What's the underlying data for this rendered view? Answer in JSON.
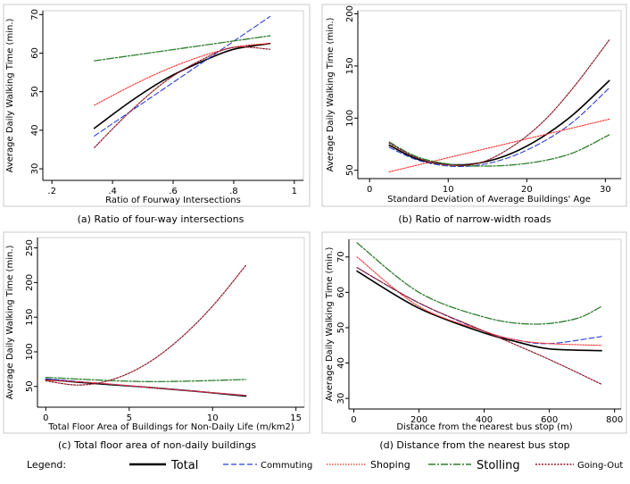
{
  "chart_data": [
    {
      "type": "line",
      "caption": "(a) Ratio of four-way intersections",
      "xlabel": "Ratio of Fourway Intersections",
      "ylabel": "Average Daily Walking Time (min.)",
      "xlim": [
        0.17,
        1.03
      ],
      "ylim": [
        27,
        71
      ],
      "xticks": [
        0.2,
        0.4,
        0.6,
        0.8,
        1.0
      ],
      "xtick_labels": [
        ".2",
        ".4",
        ".6",
        ".8",
        "1"
      ],
      "yticks": [
        30,
        40,
        50,
        60,
        70
      ],
      "ytick_labels": [
        "30",
        "40",
        "50",
        "60",
        "70"
      ],
      "series": [
        {
          "name": "Total",
          "x": [
            0.34,
            0.46,
            0.58,
            0.7,
            0.8,
            0.92
          ],
          "y": [
            40.5,
            47.5,
            53.5,
            58,
            61,
            62.5
          ]
        },
        {
          "name": "Commuting",
          "x": [
            0.34,
            0.92
          ],
          "y": [
            38.5,
            69.5
          ]
        },
        {
          "name": "Shoping",
          "x": [
            0.34,
            0.5,
            0.65,
            0.8,
            0.92
          ],
          "y": [
            46.5,
            53,
            58,
            61.5,
            62.5
          ]
        },
        {
          "name": "Stolling",
          "x": [
            0.34,
            0.92
          ],
          "y": [
            58,
            64.5
          ]
        },
        {
          "name": "Going-Out",
          "x": [
            0.34,
            0.46,
            0.58,
            0.7,
            0.8,
            0.92
          ],
          "y": [
            35.5,
            45,
            53,
            58.5,
            61.5,
            61
          ]
        }
      ]
    },
    {
      "type": "line",
      "caption": "(b) Ratio of narrow-width roads",
      "xlabel": "Standard Deviation of Average Buildings' Age",
      "ylabel": "Average Daily Walking Time (min.)",
      "xlim": [
        -1.5,
        32
      ],
      "ylim": [
        42,
        203
      ],
      "xticks": [
        0,
        10,
        20,
        30
      ],
      "xtick_labels": [
        "0",
        "10",
        "20",
        "30"
      ],
      "yticks": [
        50,
        100,
        150,
        200
      ],
      "ytick_labels": [
        "50",
        "100",
        "150",
        "200"
      ],
      "series": [
        {
          "name": "Total",
          "x": [
            2.5,
            6,
            10,
            14,
            18,
            22,
            26,
            30.5
          ],
          "y": [
            74,
            61,
            55.5,
            57,
            66,
            82,
            104,
            136
          ]
        },
        {
          "name": "Commuting",
          "x": [
            2.5,
            6,
            10,
            14,
            18,
            22,
            26,
            30.5
          ],
          "y": [
            72,
            60,
            54,
            55,
            63,
            77,
            97,
            129
          ]
        },
        {
          "name": "Shoping",
          "x": [
            2.5,
            30.5
          ],
          "y": [
            48.5,
            99
          ]
        },
        {
          "name": "Stolling",
          "x": [
            2.5,
            6,
            10,
            14,
            18,
            22,
            26,
            30.5
          ],
          "y": [
            77,
            63,
            56,
            54,
            55,
            59,
            67,
            84
          ]
        },
        {
          "name": "Going-Out",
          "x": [
            2.5,
            6,
            10,
            14,
            18,
            22,
            26,
            30.5
          ],
          "y": [
            76,
            62,
            55,
            57,
            72,
            96,
            130,
            175
          ]
        }
      ]
    },
    {
      "type": "line",
      "caption": "(c) Total floor area of non-daily buildings",
      "xlabel": "Total Floor Area of Buildings for Non-Daily Life (m/km2)",
      "ylabel": "Average Daily Walking Time (min.)",
      "xlim": [
        -0.5,
        15.5
      ],
      "ylim": [
        20,
        265
      ],
      "xticks": [
        0,
        5,
        10,
        15
      ],
      "xtick_labels": [
        "0",
        "5",
        "10",
        "15"
      ],
      "yticks": [
        50,
        100,
        150,
        200,
        250
      ],
      "ytick_labels": [
        "50",
        "100",
        "150",
        "200",
        "250"
      ],
      "series": [
        {
          "name": "Total",
          "x": [
            0,
            3,
            6,
            9,
            12
          ],
          "y": [
            60,
            54,
            49,
            43,
            36
          ]
        },
        {
          "name": "Commuting",
          "x": [
            0,
            3,
            6,
            9,
            12
          ],
          "y": [
            61,
            55,
            49,
            43,
            37
          ]
        },
        {
          "name": "Shoping",
          "x": [
            0,
            3,
            6,
            9,
            12
          ],
          "y": [
            59,
            55,
            49,
            43,
            37
          ]
        },
        {
          "name": "Stolling",
          "x": [
            0,
            6,
            12
          ],
          "y": [
            63,
            57,
            60
          ]
        },
        {
          "name": "Going-Out",
          "x": [
            0,
            2,
            4,
            6,
            8,
            10,
            12
          ],
          "y": [
            58,
            52,
            60,
            82,
            118,
            166,
            225
          ]
        }
      ]
    },
    {
      "type": "line",
      "caption": "(d) Distance from the nearest bus stop",
      "xlabel": "Distance from the nearest bus stop (m)",
      "ylabel": "Average Daily Walking Time (min.)",
      "xlim": [
        -15,
        820
      ],
      "ylim": [
        27,
        75
      ],
      "xticks": [
        0,
        200,
        400,
        600,
        800
      ],
      "xtick_labels": [
        "0",
        "200",
        "400",
        "600",
        "800"
      ],
      "yticks": [
        30,
        40,
        50,
        60,
        70
      ],
      "ytick_labels": [
        "30",
        "40",
        "50",
        "60",
        "70"
      ],
      "series": [
        {
          "name": "Total",
          "x": [
            10,
            200,
            400,
            500,
            600,
            760
          ],
          "y": [
            66,
            55.5,
            48.5,
            46,
            44,
            43.5
          ]
        },
        {
          "name": "Commuting",
          "x": [
            10,
            200,
            400,
            500,
            600,
            760
          ],
          "y": [
            67,
            57,
            49,
            46.5,
            45.5,
            47.5
          ]
        },
        {
          "name": "Shoping",
          "x": [
            10,
            200,
            400,
            500,
            600,
            760
          ],
          "y": [
            70,
            56,
            49,
            46.5,
            45.5,
            45
          ]
        },
        {
          "name": "Stolling",
          "x": [
            10,
            200,
            400,
            550,
            680,
            760
          ],
          "y": [
            74,
            60,
            53,
            51,
            52.5,
            56
          ]
        },
        {
          "name": "Going-Out",
          "x": [
            10,
            200,
            400,
            600,
            760
          ],
          "y": [
            67,
            57,
            49,
            41,
            34
          ]
        }
      ]
    }
  ],
  "legend": {
    "title": "Legend:",
    "items": [
      {
        "name": "Total",
        "color": "#000000"
      },
      {
        "name": "Commuting",
        "color": "#2a3fd0"
      },
      {
        "name": "Shoping",
        "color": "#ff2a2a"
      },
      {
        "name": "Stolling",
        "color": "#2e7d2e"
      },
      {
        "name": "Going-Out",
        "color": "#8a1a2a"
      }
    ]
  }
}
